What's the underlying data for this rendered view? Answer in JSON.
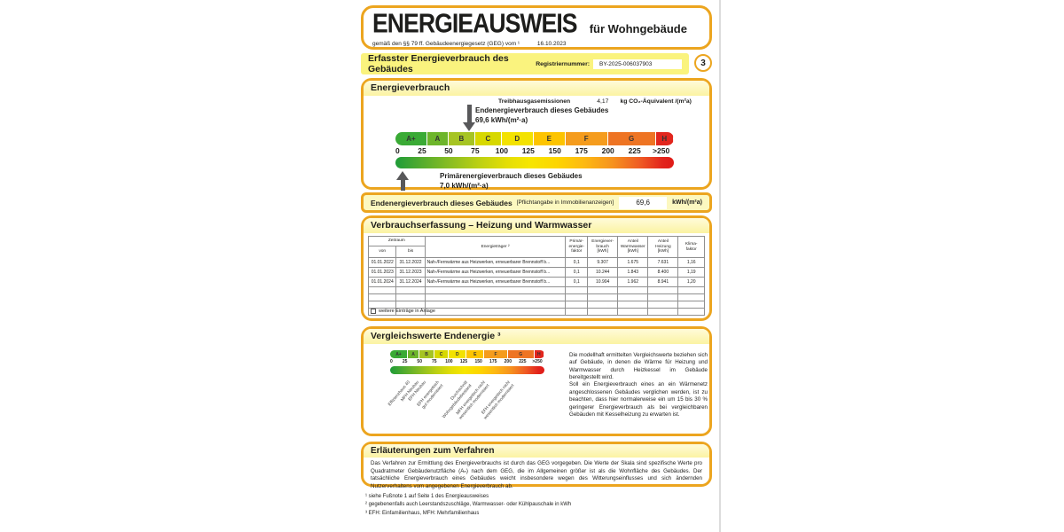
{
  "colors": {
    "accent": "#ECA51F",
    "band_yellow": "#FAF37E",
    "arrow_gray": "#58585A"
  },
  "header": {
    "title": "ENERGIEAUSWEIS",
    "subtitle": "für Wohngebäude",
    "law": "gemäß den §§ 79 ff. Gebäudeenergiegesetz (GEG) vom ¹",
    "date": "16.10.2023"
  },
  "banner": {
    "title": "Erfasster Energieverbrauch des Gebäudes",
    "reg_label": "Registriernummer:",
    "reg_value": "BY-2025-006037903",
    "page_number": "3"
  },
  "consumption": {
    "section_title": "Energieverbrauch",
    "ghg_label": "Treibhausgasemissionen",
    "ghg_value": "4,17",
    "ghg_unit": "kg CO₂-Äquivalent /(m²a)",
    "end_label": "Endenergieverbrauch dieses Gebäudes",
    "end_value": "69,6 kWh/(m²·a)",
    "end_numeric": 69.6,
    "primary_label": "Primärenergieverbrauch dieses Gebäudes",
    "primary_value": "7,0 kWh/(m²·a)",
    "primary_numeric": 7.0
  },
  "scale": {
    "max": 262,
    "classes": [
      {
        "label": "A+",
        "from": 0,
        "to": 30,
        "color": "#3aaa35"
      },
      {
        "label": "A",
        "from": 30,
        "to": 50,
        "color": "#6db52b"
      },
      {
        "label": "B",
        "from": 50,
        "to": 75,
        "color": "#a6c423"
      },
      {
        "label": "C",
        "from": 75,
        "to": 100,
        "color": "#d7d800"
      },
      {
        "label": "D",
        "from": 100,
        "to": 130,
        "color": "#f3e200"
      },
      {
        "label": "E",
        "from": 130,
        "to": 160,
        "color": "#fdc400"
      },
      {
        "label": "F",
        "from": 160,
        "to": 200,
        "color": "#f59c1d"
      },
      {
        "label": "G",
        "from": 200,
        "to": 245,
        "color": "#ee7423"
      },
      {
        "label": "H",
        "from": 245,
        "to": 262,
        "color": "#e2261d"
      }
    ],
    "ticks": [
      {
        "label": "0",
        "value": 0
      },
      {
        "label": "25",
        "value": 25
      },
      {
        "label": "50",
        "value": 50
      },
      {
        "label": "75",
        "value": 75
      },
      {
        "label": "100",
        "value": 100
      },
      {
        "label": "125",
        "value": 125
      },
      {
        "label": "150",
        "value": 150
      },
      {
        "label": "175",
        "value": 175
      },
      {
        "label": "200",
        "value": 200
      },
      {
        "label": "225",
        "value": 225
      },
      {
        "label": ">250",
        "value": 250
      }
    ]
  },
  "end_row": {
    "label": "Endenergieverbrauch dieses Gebäudes",
    "note": "[Pflichtangabe in Immobilienanzeigen]",
    "value": "69,6",
    "unit": "kWh/(m²a)"
  },
  "table_section": {
    "title": "Verbrauchserfassung – Heizung und Warmwasser",
    "headers": {
      "zeitraum": "Zeitraum",
      "von": "von",
      "bis": "bis",
      "energietraeger": "Energieträger ²",
      "primaerfaktor": "Primär-\nenergie-\nfaktor",
      "verbrauch": "Energiever-\nbrauch\n[kWh]",
      "warmwasser": "Anteil\nWarmwasser\n[kWh]",
      "heizung": "Anteil\nHeizung\n[kWh]",
      "klima": "Klima-\nfaktor"
    },
    "rows": [
      [
        "01.01.2022",
        "31.12.2022",
        "Nah-/Fernwärme aus Heizwerken, erneuerbarer Brennstoff b...",
        "0,1",
        "9.307",
        "1.675",
        "7.631",
        "1,16"
      ],
      [
        "01.01.2023",
        "31.12.2023",
        "Nah-/Fernwärme aus Heizwerken, erneuerbarer Brennstoff b...",
        "0,1",
        "10.244",
        "1.843",
        "8.400",
        "1,19"
      ],
      [
        "01.01.2024",
        "31.12.2024",
        "Nah-/Fernwärme aus Heizwerken, erneuerbarer Brennstoff b...",
        "0,1",
        "10.904",
        "1.962",
        "8.941",
        "1,20"
      ]
    ],
    "empty_rows": 4,
    "more_label": "weitere Einträge in Anlage"
  },
  "comparison": {
    "title": "Vergleichswerte Endenergie ³",
    "labels": [
      {
        "text": "Effizienzhaus 40",
        "value": 30
      },
      {
        "text": "MFH Neubau",
        "value": 45
      },
      {
        "text": "EFH Neubau",
        "value": 57
      },
      {
        "text": "EFH energetisch\ngut modernisiert",
        "value": 80
      },
      {
        "text": "Durchschnitt\nWohngebäudebestand",
        "value": 128
      },
      {
        "text": "MFH energetisch nicht\nwesentlich modernisiert",
        "value": 158
      },
      {
        "text": "EFH energetisch nicht\nwesentlich modernisiert",
        "value": 200
      }
    ],
    "text1": "Die modellhaft ermittelten Vergleichswerte beziehen sich auf Gebäude, in denen die Wärme für Heizung und Warmwasser durch Heizkessel im Gebäude bereitgestellt wird.",
    "text2": "Soll ein Energieverbrauch eines an ein Wärmenetz angeschlossenen Gebäudes verglichen werden, ist zu beachten, dass hier normalerweise ein um 15 bis 30 % geringerer Energieverbrauch als bei vergleichbaren Gebäuden mit Kesselheizung zu erwarten ist."
  },
  "explanation": {
    "title": "Erläuterungen zum Verfahren",
    "text": "Das Verfahren zur Ermittlung des Energieverbrauchs ist durch das GEG vorgegeben. Die Werte der Skala sind spezifische Werte pro Quadratmeter Gebäudenutzfläche (Aₙ) nach dem GEG, die im Allgemeinen größer ist als die Wohnfläche des Gebäudes. Der tatsächliche Energieverbrauch eines Gebäudes weicht insbesondere wegen des Witterungseinflusses und sich ändernden Nutzerverhaltens vom angegebenen Energieverbrauch ab."
  },
  "footnotes": [
    "¹ siehe Fußnote 1 auf Seite 1 des Energieausweises",
    "² gegebenenfalls auch Leerstandszuschläge, Warmwasser- oder Kühlpauschale in kWh",
    "³ EFH: Einfamilienhaus, MFH: Mehrfamilienhaus"
  ]
}
